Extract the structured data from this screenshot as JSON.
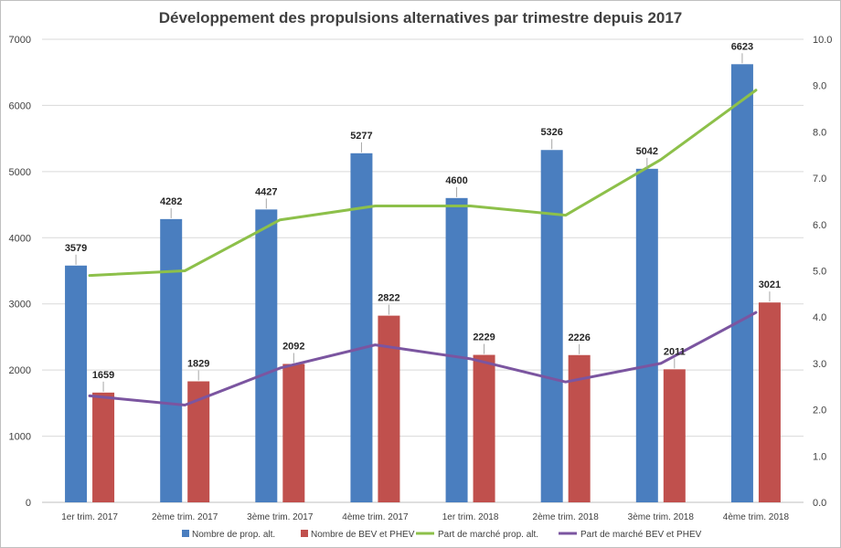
{
  "chart_data": {
    "type": "bar",
    "title": "Développement des propulsions alternatives par trimestre depuis 2017",
    "categories": [
      "1er trim. 2017",
      "2ème trim. 2017",
      "3ème trim. 2017",
      "4ème trim. 2017",
      "1er trim. 2018",
      "2ème trim. 2018",
      "3ème trim. 2018",
      "4ème trim. 2018"
    ],
    "series": [
      {
        "name": "Nombre de prop. alt.",
        "type": "bar",
        "axis": "left",
        "color": "#4a7ebf",
        "values": [
          3579,
          4282,
          4427,
          5277,
          4600,
          5326,
          5042,
          6623
        ]
      },
      {
        "name": "Nombre de BEV et PHEV",
        "type": "bar",
        "axis": "left",
        "color": "#c0504d",
        "values": [
          1659,
          1829,
          2092,
          2822,
          2229,
          2226,
          2011,
          3021
        ]
      },
      {
        "name": "Part de marché prop. alt.",
        "type": "line",
        "axis": "right",
        "color": "#8dc04a",
        "values": [
          4.9,
          5.0,
          6.1,
          6.4,
          6.4,
          6.2,
          7.4,
          8.9
        ]
      },
      {
        "name": "Part de marché BEV et PHEV",
        "type": "line",
        "axis": "right",
        "color": "#7b55a0",
        "values": [
          2.3,
          2.1,
          2.9,
          3.4,
          3.1,
          2.6,
          3.0,
          4.1
        ]
      }
    ],
    "y_left": {
      "min": 0,
      "max": 7000,
      "ticks": [
        "0",
        "1000",
        "2000",
        "3000",
        "4000",
        "5000",
        "6000",
        "7000"
      ]
    },
    "y_right": {
      "min": 0,
      "max": 10,
      "ticks": [
        "0.0",
        "1.0",
        "2.0",
        "3.0",
        "4.0",
        "5.0",
        "6.0",
        "7.0",
        "8.0",
        "9.0",
        "10.0"
      ]
    },
    "grid": true,
    "legend": "bottom"
  }
}
